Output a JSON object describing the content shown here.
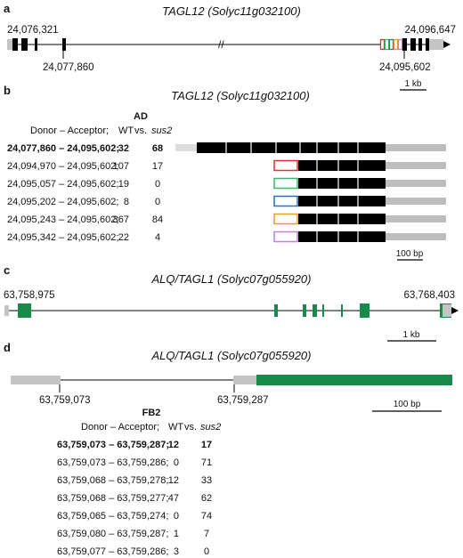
{
  "colors": {
    "exon": "#000000",
    "utr": "#bdbdbd",
    "utr_light": "#dcdcdc",
    "green": "#1a8a4a",
    "intron": "#000000",
    "box_colors": [
      "#e03030",
      "#3ab86a",
      "#2f6fbf",
      "#ef9a2e",
      "#c97be0"
    ]
  },
  "panel_a": {
    "label": "a",
    "title_gene": "TAGL12",
    "title_id": "Solyc11g032100",
    "coord_start": "24,076,321",
    "coord_end": "24,096,647",
    "coord_donor": "24,077,860",
    "coord_acceptor": "24,095,602",
    "break_mark": "//",
    "scale": "1 kb"
  },
  "panel_b": {
    "label": "b",
    "title_gene": "TAGL12",
    "title_id": "Solyc11g032100",
    "tissue": "AD",
    "col_header": "Donor – Acceptor;",
    "col_wt": "WT",
    "col_vs": "vs.",
    "col_mut": "sus2",
    "rows": [
      {
        "coords": "24,077,860 – 24,095,602;",
        "wt": "32",
        "mut": "68",
        "bold": true,
        "box": ""
      },
      {
        "coords": "24,094,970 – 24,095,602;",
        "wt": "107",
        "mut": "17",
        "bold": false,
        "box": "#e03030"
      },
      {
        "coords": "24,095,057 – 24,095,602;",
        "wt": "19",
        "mut": "0",
        "bold": false,
        "box": "#3ab86a"
      },
      {
        "coords": "24,095,202 – 24,095,602;",
        "wt": "8",
        "mut": "0",
        "bold": false,
        "box": "#2f6fbf"
      },
      {
        "coords": "24,095,243 – 24,095,602;",
        "wt": "367",
        "mut": "84",
        "bold": false,
        "box": "#ef9a2e"
      },
      {
        "coords": "24,095,342 – 24,095,602;",
        "wt": "22",
        "mut": "4",
        "bold": false,
        "box": "#c97be0"
      }
    ],
    "scale": "100 bp"
  },
  "panel_c": {
    "label": "c",
    "title_gene": "ALQ/TAGL1",
    "title_id": "Solyc07g055920",
    "coord_start": "63,758,975",
    "coord_end": "63,768,403",
    "scale": "1 kb"
  },
  "panel_d": {
    "label": "d",
    "title_gene": "ALQ/TAGL1",
    "title_id": "Solyc07g055920",
    "coord_donor": "63,759,073",
    "coord_acceptor": "63,759,287",
    "scale": "100 bp",
    "tissue": "FB2",
    "col_header": "Donor – Acceptor;",
    "col_wt": "WT",
    "col_vs": "vs.",
    "col_mut": "sus2",
    "rows": [
      {
        "coords": "63,759,073 – 63,759,287;",
        "wt": "12",
        "mut": "17",
        "bold": true
      },
      {
        "coords": "63,759,073 – 63,759,286;",
        "wt": "0",
        "mut": "71",
        "bold": false
      },
      {
        "coords": "63,759,068 – 63,759,278;",
        "wt": "12",
        "mut": "33",
        "bold": false
      },
      {
        "coords": "63,759,068 – 63,759,277;",
        "wt": "47",
        "mut": "62",
        "bold": false
      },
      {
        "coords": "63,759,065 – 63,759,274;",
        "wt": "0",
        "mut": "74",
        "bold": false
      },
      {
        "coords": "63,759,080 – 63,759,287;",
        "wt": "1",
        "mut": "7",
        "bold": false
      },
      {
        "coords": "63,759,077 – 63,759,286;",
        "wt": "3",
        "mut": "0",
        "bold": false
      }
    ]
  }
}
